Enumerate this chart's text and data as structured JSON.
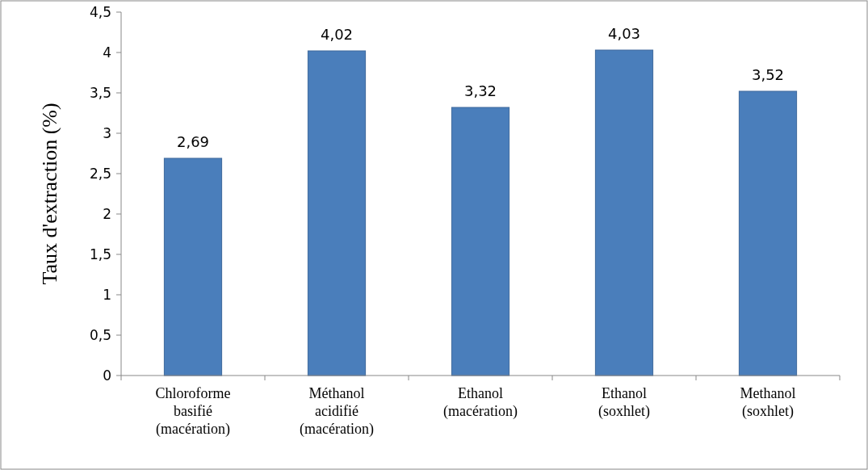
{
  "chart_data": {
    "type": "bar",
    "ylabel": "Taux d'extraction (%)",
    "categories": [
      "Chloroforme\nbasifié\n(macération)",
      "Méthanol\nacidifié\n(macération)",
      "Ethanol\n(macération)",
      "Ethanol\n(soxhlet)",
      "Methanol\n(soxhlet)"
    ],
    "values": [
      2.69,
      4.02,
      3.32,
      4.03,
      3.52
    ],
    "value_labels": [
      "2,69",
      "4,02",
      "3,32",
      "4,03",
      "3,52"
    ],
    "color": "#4a7ebb",
    "ylim": [
      0,
      4.5
    ],
    "yticks": [
      0,
      {
        "value": 0.5,
        "label": "0,5"
      },
      1,
      {
        "value": 1.5,
        "label": "1,5"
      },
      2,
      {
        "value": 2.5,
        "label": "2,5"
      },
      3,
      {
        "value": 3.5,
        "label": "3,5"
      },
      4,
      {
        "value": 4.5,
        "label": "4,5"
      }
    ],
    "grid": false
  }
}
